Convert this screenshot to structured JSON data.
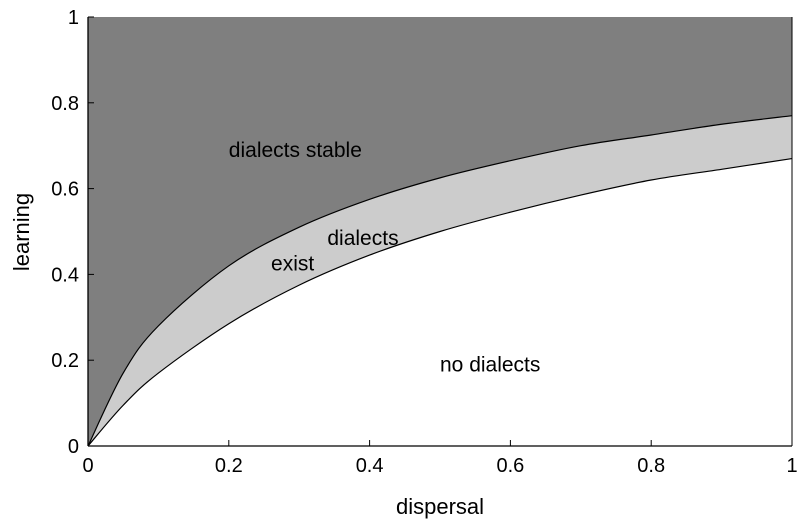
{
  "chart_data": {
    "type": "area",
    "xlabel": "dispersal",
    "ylabel": "learning",
    "xlim": [
      0,
      1
    ],
    "ylim": [
      0,
      1
    ],
    "x_ticks": [
      "0",
      "0.2",
      "0.4",
      "0.6",
      "0.8",
      "1"
    ],
    "y_ticks": [
      "0",
      "0.2",
      "0.4",
      "0.6",
      "0.8",
      "1"
    ],
    "grid": false,
    "colors": {
      "stable_region": "#7f7f7f",
      "exist_region": "#cccccc",
      "no_dialects_region": "#ffffff",
      "boundary_line": "#000000"
    },
    "series": [
      {
        "x": [
          0,
          0.05,
          0.1,
          0.2,
          0.3,
          0.4,
          0.5,
          0.6,
          0.7,
          0.8,
          0.9,
          1.0
        ],
        "y": [
          0,
          0.17,
          0.28,
          0.42,
          0.51,
          0.575,
          0.625,
          0.665,
          0.7,
          0.725,
          0.75,
          0.77
        ]
      },
      {
        "x": [
          0,
          0.05,
          0.1,
          0.2,
          0.3,
          0.4,
          0.5,
          0.6,
          0.7,
          0.8,
          0.9,
          1.0
        ],
        "y": [
          0,
          0.095,
          0.17,
          0.285,
          0.375,
          0.445,
          0.5,
          0.545,
          0.585,
          0.62,
          0.645,
          0.67
        ]
      }
    ],
    "annotations": [
      {
        "text": "dialects stable",
        "x": 0.2,
        "y": 0.69
      },
      {
        "text": "dialects",
        "x": 0.34,
        "y": 0.485
      },
      {
        "text": "exist",
        "x": 0.26,
        "y": 0.425
      },
      {
        "text": "no dialects",
        "x": 0.5,
        "y": 0.19
      }
    ]
  }
}
